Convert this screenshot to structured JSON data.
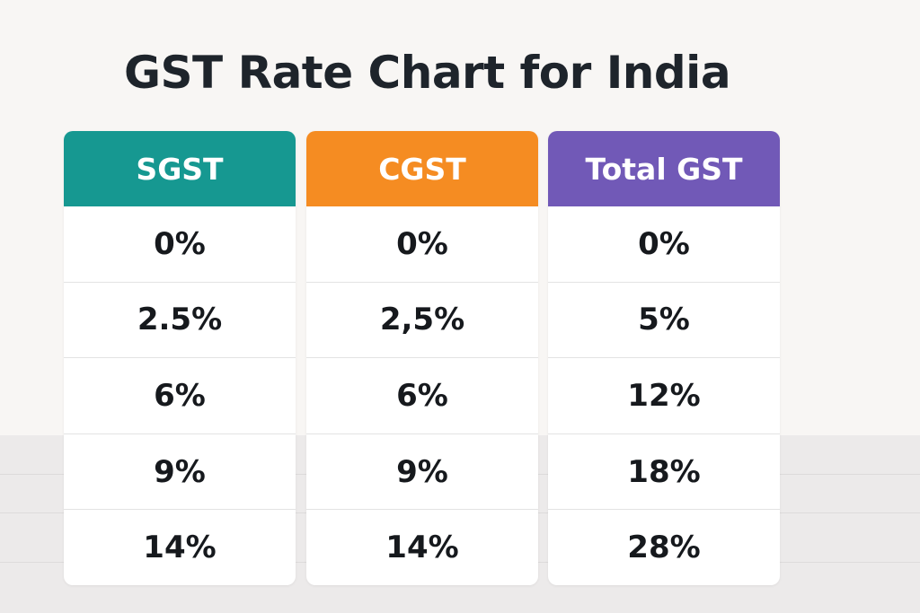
{
  "title": "GST Rate Chart for India",
  "colors": {
    "sgst_header": "#169891",
    "cgst_header": "#f58c22",
    "total_header": "#7159b7"
  },
  "chart_data": {
    "type": "table",
    "title": "GST Rate Chart for India",
    "columns": [
      "SGST",
      "CGST",
      "Total GST"
    ],
    "rows": [
      [
        "0%",
        "0%",
        "0%"
      ],
      [
        "2.5%",
        "2,5%",
        "5%"
      ],
      [
        "6%",
        "6%",
        "12%"
      ],
      [
        "9%",
        "9%",
        "18%"
      ],
      [
        "14%",
        "14%",
        "28%"
      ]
    ]
  }
}
